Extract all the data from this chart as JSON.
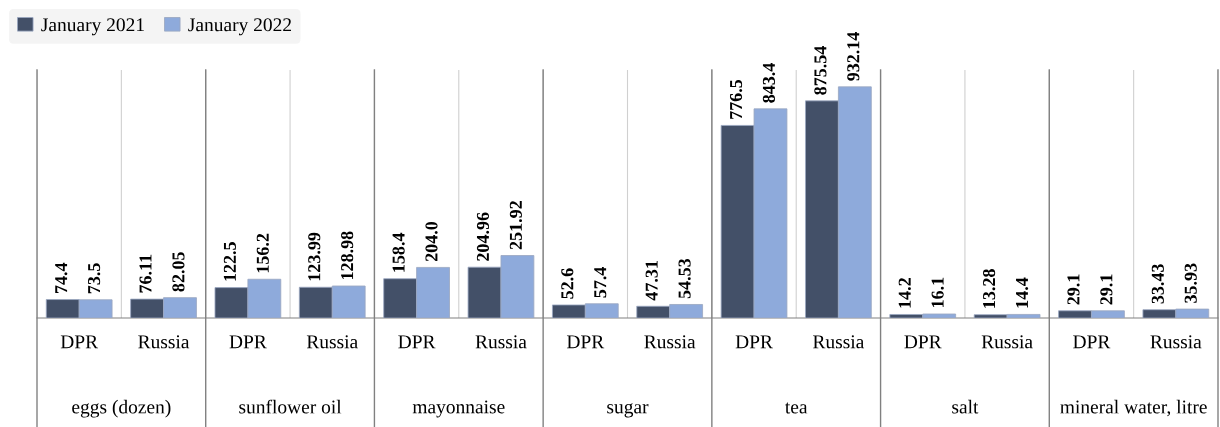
{
  "chart_data": {
    "type": "bar",
    "categories": [
      "DPR",
      "Russia",
      "DPR",
      "Russia",
      "DPR",
      "Russia",
      "DPR",
      "Russia",
      "DPR",
      "Russia",
      "DPR",
      "Russia",
      "DPR",
      "Russia"
    ],
    "annotations": [
      "eggs (dozen)",
      "sunflower oil",
      "mayonnaise",
      "sugar",
      "tea",
      "salt",
      "mineral water, litre"
    ],
    "series": [
      {
        "name": "January 2021",
        "color": "#435068",
        "values": [
          74.4,
          76.11,
          122.5,
          123.99,
          158.4,
          204.96,
          52.6,
          47.31,
          776.5,
          875.54,
          14.2,
          13.28,
          29.1,
          33.43
        ],
        "value_labels": [
          "74.4",
          "76.11",
          "122.5",
          "123.99",
          "158.4",
          "204.96",
          "52.6",
          "47.31",
          "776.5",
          "875.54",
          "14.2",
          "13.28",
          "29.1",
          "33.43"
        ]
      },
      {
        "name": "January 2022",
        "color": "#8eaadb",
        "values": [
          73.5,
          82.05,
          156.2,
          128.98,
          204.0,
          251.92,
          57.4,
          54.53,
          843.4,
          932.14,
          16.1,
          14.4,
          29.1,
          35.93
        ],
        "value_labels": [
          "73.5",
          "82.05",
          "156.2",
          "128.98",
          "204.0",
          "251.92",
          "57.4",
          "54.53",
          "843.4",
          "932.14",
          "16.1",
          "14.4",
          "29.1",
          "35.93"
        ]
      }
    ],
    "ylim": [
      0,
      1000
    ],
    "grid": "x",
    "legend": "top left"
  }
}
